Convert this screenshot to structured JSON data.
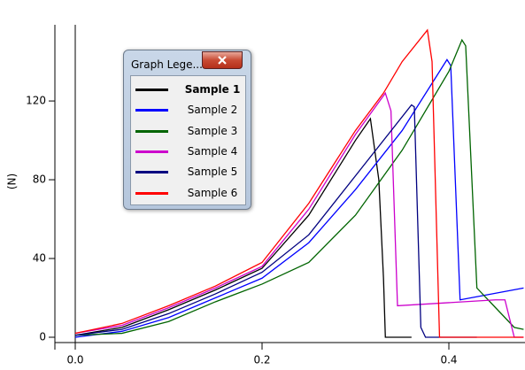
{
  "chart_data": {
    "type": "line",
    "ylabel": "(N)",
    "legend_title": "Graph Lege...",
    "xlim": [
      -0.0218,
      0.4815
    ],
    "ylim": [
      -2.7,
      158.7
    ],
    "xticks": [
      {
        "value": 0,
        "label": "0.0"
      },
      {
        "value": 0.2,
        "label": "0.2"
      },
      {
        "value": 0.4,
        "label": "0.4"
      }
    ],
    "yticks": [
      0,
      40,
      80,
      120
    ],
    "series": [
      {
        "name": "Sample 1",
        "color": "#000000",
        "x": [
          0,
          0.05,
          0.1,
          0.15,
          0.2,
          0.25,
          0.3,
          0.316,
          0.325,
          0.33,
          0.332,
          0.36
        ],
        "values": [
          1,
          5,
          14,
          24,
          35,
          62,
          100,
          111,
          80,
          30,
          0,
          0
        ]
      },
      {
        "name": "Sample 2",
        "color": "#0000ff",
        "x": [
          0,
          0.05,
          0.1,
          0.15,
          0.2,
          0.25,
          0.3,
          0.35,
          0.398,
          0.402,
          0.412,
          0.48
        ],
        "values": [
          0,
          3,
          10,
          20,
          30,
          48,
          75,
          105,
          141,
          138,
          19,
          25
        ]
      },
      {
        "name": "Sample 3",
        "color": "#006400",
        "x": [
          0,
          0.05,
          0.1,
          0.15,
          0.2,
          0.25,
          0.3,
          0.35,
          0.4,
          0.414,
          0.418,
          0.43,
          0.45,
          0.47,
          0.48
        ],
        "values": [
          1,
          2,
          8,
          18,
          27,
          38,
          62,
          95,
          135,
          151,
          148,
          25,
          15,
          5,
          4
        ]
      },
      {
        "name": "Sample 4",
        "color": "#cc00cc",
        "x": [
          0,
          0.05,
          0.1,
          0.15,
          0.2,
          0.25,
          0.3,
          0.332,
          0.338,
          0.345,
          0.45,
          0.46,
          0.47,
          0.48
        ],
        "values": [
          2,
          6,
          15,
          25,
          36,
          65,
          103,
          124,
          115,
          16,
          19,
          19,
          0,
          0
        ]
      },
      {
        "name": "Sample 5",
        "color": "#000080",
        "x": [
          0,
          0.05,
          0.1,
          0.15,
          0.2,
          0.25,
          0.3,
          0.36,
          0.363,
          0.37,
          0.375,
          0.43
        ],
        "values": [
          1,
          4,
          12,
          22,
          33,
          52,
          82,
          118,
          117,
          5,
          0,
          0
        ]
      },
      {
        "name": "Sample 6",
        "color": "#ff0000",
        "x": [
          0,
          0.05,
          0.1,
          0.15,
          0.2,
          0.25,
          0.3,
          0.33,
          0.35,
          0.377,
          0.382,
          0.39,
          0.48
        ],
        "values": [
          2,
          7,
          16,
          26,
          38,
          68,
          105,
          124,
          140,
          156,
          140,
          0,
          0
        ]
      }
    ]
  }
}
